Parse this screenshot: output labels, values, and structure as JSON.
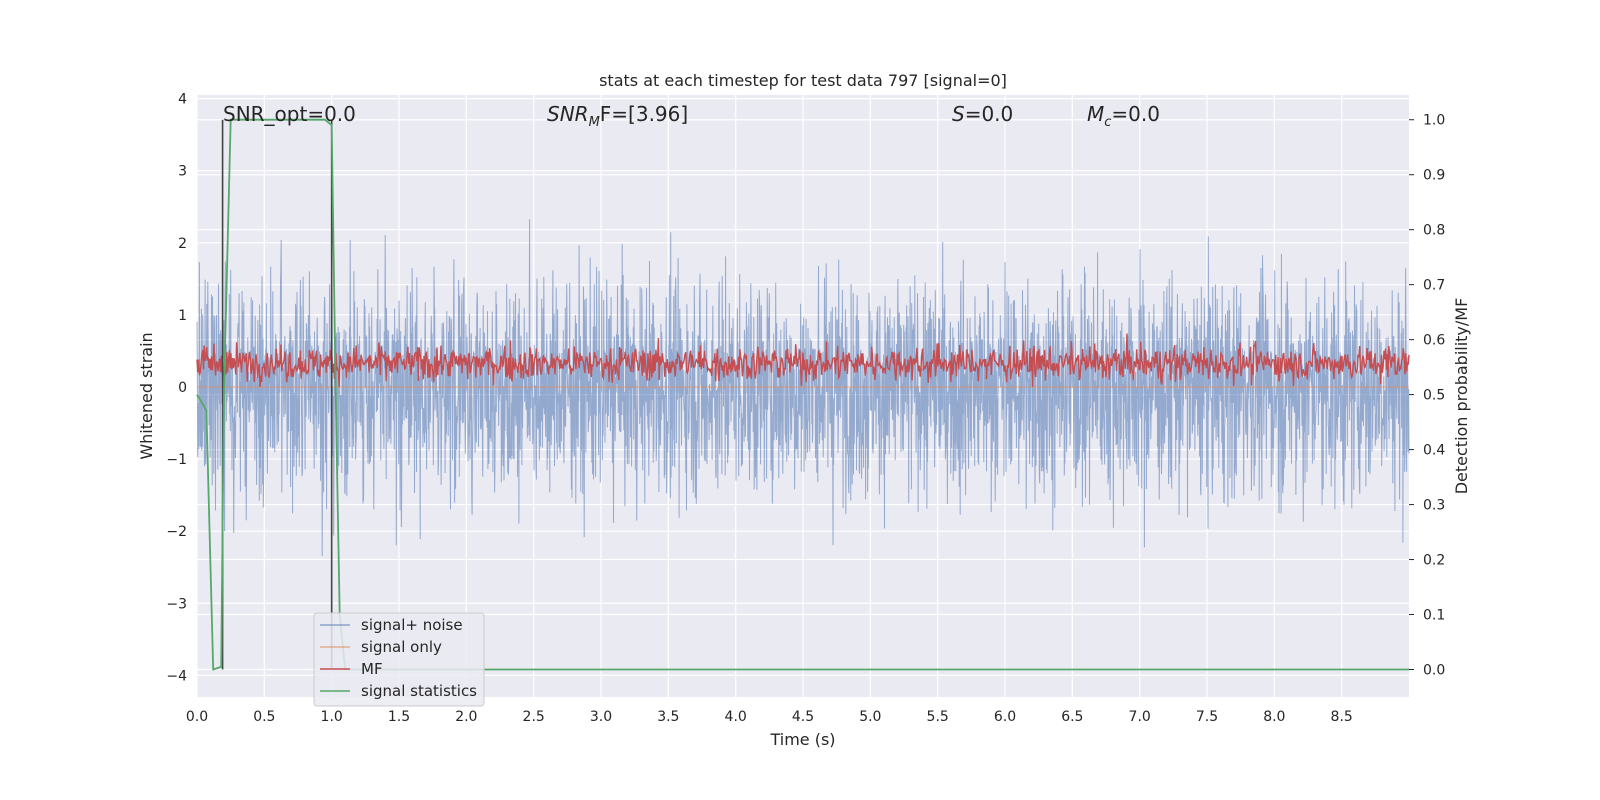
{
  "chart_data": {
    "type": "line",
    "title": "stats at each timestep for test data 797 [signal=0]",
    "xlabel": "Time (s)",
    "ylabel": "Whitened strain",
    "y2label": "Detection probability/MF",
    "xlim": [
      0.0,
      9.0
    ],
    "ylim": [
      -4.3,
      4.05
    ],
    "y2lim": [
      -0.05,
      1.045
    ],
    "grid": true,
    "legend_position": "lower-left",
    "x_ticks": [
      "0.0",
      "0.5",
      "1.0",
      "1.5",
      "2.0",
      "2.5",
      "3.0",
      "3.5",
      "4.0",
      "4.5",
      "5.0",
      "5.5",
      "6.0",
      "6.5",
      "7.0",
      "7.5",
      "8.0",
      "8.5"
    ],
    "y_ticks": [
      "4",
      "3",
      "2",
      "1",
      "0",
      "−1",
      "−2",
      "−3",
      "−4"
    ],
    "y2_ticks": [
      "1.0",
      "0.9",
      "0.8",
      "0.7",
      "0.6",
      "0.5",
      "0.4",
      "0.3",
      "0.2",
      "0.1",
      "0.0"
    ],
    "annotations": {
      "snr_opt": "SNR_opt=0.0",
      "snr_mf_prefix": "SNR",
      "snr_mf_sub": "M",
      "snr_mf_suffix": "F=[3.96]",
      "s_label": "S",
      "s_value": "=0.0",
      "mc_label": "M",
      "mc_sub": "c",
      "mc_value": "=0.0"
    },
    "vertical_markers_x": [
      0.19,
      1.0
    ],
    "series": [
      {
        "name": "signal+ noise",
        "color": "#4c72b0",
        "summary": "dense noise spanning about -3.4 to 3.7 across 0–9 s"
      },
      {
        "name": "signal only",
        "color": "#dd8452",
        "values": "flat at 0"
      },
      {
        "name": "MF",
        "color": "#c44e52",
        "summary": "fluctuates between about 0.0 and 1.0 (whitened strain units)"
      },
      {
        "name": "signal statistics",
        "color": "#55a868",
        "axis": "right",
        "x": [
          0.0,
          0.05,
          0.07,
          0.12,
          0.18,
          0.2,
          0.25,
          0.3,
          0.95,
          1.0,
          1.03,
          1.06,
          1.1,
          9.0
        ],
        "y": [
          0.5,
          0.48,
          0.47,
          0.0,
          0.005,
          0.5,
          1.0,
          1.0,
          1.0,
          0.99,
          0.5,
          0.1,
          0.0,
          0.0
        ]
      }
    ]
  }
}
